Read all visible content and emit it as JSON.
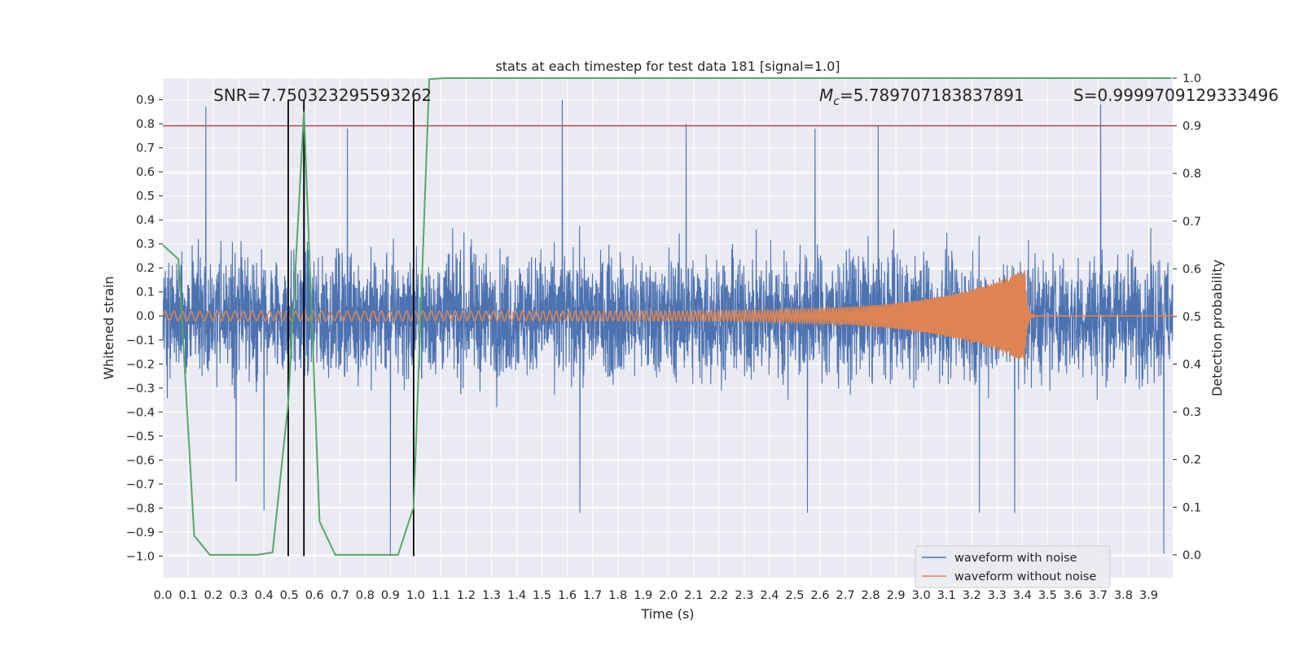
{
  "chart_data": {
    "type": "line",
    "title": "stats at each timestep for test data 181 [signal=1.0]",
    "xlabel": "Time (s)",
    "ylabel": "Whitened strain",
    "y2label": "Detection probability",
    "xlim": [
      0.0,
      3.995
    ],
    "ylim": [
      -1.09,
      0.99
    ],
    "y2lim": [
      -0.048,
      1.0
    ],
    "xticks": [
      0.0,
      0.1,
      0.2,
      0.3,
      0.4,
      0.5,
      0.6,
      0.7,
      0.8,
      0.9,
      1.0,
      1.1,
      1.2,
      1.3,
      1.4,
      1.5,
      1.6,
      1.7,
      1.8,
      1.9,
      2.0,
      2.1,
      2.2,
      2.3,
      2.4,
      2.5,
      2.6,
      2.7,
      2.8,
      2.9,
      3.0,
      3.1,
      3.2,
      3.3,
      3.4,
      3.5,
      3.6,
      3.7,
      3.8,
      3.9
    ],
    "xtick_labels": [
      "0.0",
      "0.1",
      "0.2",
      "0.3",
      "0.4",
      "0.5",
      "0.6",
      "0.7",
      "0.8",
      "0.9",
      "1.0",
      "1.1",
      "1.2",
      "1.3",
      "1.4",
      "1.5",
      "1.6",
      "1.7",
      "1.8",
      "1.9",
      "2.0",
      "2.1",
      "2.2",
      "2.3",
      "2.4",
      "2.5",
      "2.6",
      "2.7",
      "2.8",
      "2.9",
      "3.0",
      "3.1",
      "3.2",
      "3.3",
      "3.4",
      "3.5",
      "3.6",
      "3.7",
      "3.8",
      "3.9"
    ],
    "yticks": [
      0.9,
      0.8,
      0.7,
      0.6,
      0.5,
      0.4,
      0.3,
      0.2,
      0.1,
      0.0,
      -0.1,
      -0.2,
      -0.3,
      -0.4,
      -0.5,
      -0.6,
      -0.7,
      -0.8,
      -0.9,
      -1.0
    ],
    "ytick_labels": [
      "0.9",
      "0.8",
      "0.7",
      "0.6",
      "0.5",
      "0.4",
      "0.3",
      "0.2",
      "0.1",
      "0.0",
      "−0.1",
      "−0.2",
      "−0.3",
      "−0.4",
      "−0.5",
      "−0.6",
      "−0.7",
      "−0.8",
      "−0.9",
      "−1.0"
    ],
    "y2ticks": [
      1.0,
      0.9,
      0.8,
      0.7,
      0.6,
      0.5,
      0.4,
      0.3,
      0.2,
      0.1,
      0.0
    ],
    "y2tick_labels": [
      "1.0",
      "0.9",
      "0.8",
      "0.7",
      "0.6",
      "0.5",
      "0.4",
      "0.3",
      "0.2",
      "0.1",
      "0.0"
    ],
    "annotations": {
      "snr": "SNR=7.750323295593262",
      "mc_symbol": "M",
      "mc_subscript": "c",
      "mc_value": "=5.789707183837891",
      "s": "S=0.9999709129333496"
    },
    "series": [
      {
        "name": "waveform with noise",
        "color": "#4c72b0",
        "kind": "noise",
        "amplitude_envelope": 0.55,
        "peak_values": [
          [
            0.17,
            0.87
          ],
          [
            0.29,
            -0.69
          ],
          [
            0.4,
            -0.81
          ],
          [
            0.56,
            0.75
          ],
          [
            0.73,
            0.78
          ],
          [
            0.9,
            -1.0
          ],
          [
            1.58,
            0.9
          ],
          [
            1.65,
            -0.82
          ],
          [
            2.07,
            0.8
          ],
          [
            2.55,
            -0.82
          ],
          [
            2.58,
            0.78
          ],
          [
            2.83,
            0.79
          ],
          [
            3.23,
            -0.82
          ],
          [
            3.37,
            -0.82
          ],
          [
            3.71,
            0.88
          ],
          [
            3.96,
            -0.99
          ]
        ]
      },
      {
        "name": "waveform without noise",
        "color": "#dd8452",
        "kind": "chirp",
        "f0": 29,
        "f1": 260,
        "a0": 0.02,
        "a_peak": 0.19,
        "merger_time": 3.41,
        "ringdown_level": 0.0
      },
      {
        "name": "detection probability",
        "color": "#55a868",
        "axis": "y2",
        "x": [
          0.0,
          0.062,
          0.124,
          0.186,
          0.248,
          0.31,
          0.372,
          0.434,
          0.496,
          0.558,
          0.62,
          0.682,
          0.744,
          0.806,
          0.868,
          0.93,
          0.992,
          1.054,
          1.116,
          1.5,
          2.0,
          2.5,
          3.0,
          3.5,
          3.99
        ],
        "y": [
          0.65,
          0.62,
          0.04,
          0.0,
          0.0,
          0.0,
          0.0,
          0.005,
          0.32,
          0.93,
          0.07,
          0.0,
          0.0,
          0.0,
          0.0,
          0.0,
          0.1,
          0.998,
          1.0,
          1.0,
          1.0,
          1.0,
          1.0,
          1.0,
          1.0
        ]
      }
    ],
    "hlines": [
      {
        "axis": "y2",
        "value": 0.9,
        "color": "#c44e52"
      }
    ],
    "vlines": [
      {
        "x": 0.496,
        "color": "#000000"
      },
      {
        "x": 0.558,
        "color": "#000000"
      },
      {
        "x": 0.992,
        "color": "#000000"
      }
    ],
    "vline_range": [
      -1.0,
      0.9
    ],
    "legend": {
      "placement": "lower-right",
      "entries": [
        {
          "label": "waveform with noise",
          "color": "#4c72b0"
        },
        {
          "label": "waveform without noise",
          "color": "#dd8452"
        }
      ]
    },
    "colors": {
      "plot_bg": "#eaeaf2",
      "grid": "#ffffff",
      "text": "#262626"
    }
  }
}
